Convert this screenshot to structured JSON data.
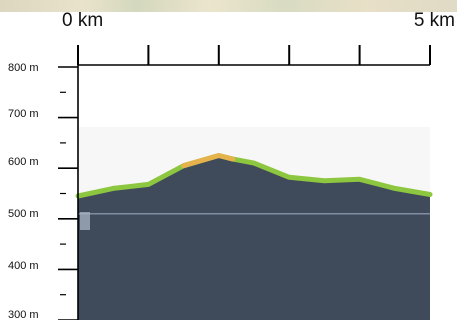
{
  "map_preview": {
    "icon": "map-strip"
  },
  "distance_axis": {
    "start_label": "0 km",
    "end_label": "5 km"
  },
  "elevation_axis": {
    "labels": [
      "800 m",
      "700 m",
      "600 m",
      "500 m",
      "400 m",
      "300 m"
    ]
  },
  "chart_data": {
    "type": "area",
    "title": "",
    "xlabel": "",
    "ylabel": "",
    "x_unit": "km",
    "y_unit": "m",
    "xlim": [
      0,
      5
    ],
    "ylim": [
      300,
      800
    ],
    "x_ticks": [
      0,
      1,
      2,
      3,
      4,
      5
    ],
    "y_ticks": [
      800,
      700,
      600,
      500,
      400,
      300
    ],
    "series": [
      {
        "x": [
          0,
          0.5,
          1,
          1.5,
          2,
          2.2,
          2.5,
          3,
          3.5,
          4,
          4.5,
          5
        ],
        "y": [
          545,
          560,
          568,
          605,
          625,
          618,
          610,
          582,
          575,
          578,
          560,
          548
        ]
      }
    ],
    "colors": {
      "terrain_fill": "#3f4a5a",
      "profile_line": "#8dc63f",
      "highlight_segment": "#e6b24c",
      "reference_line": "#7f8ea3"
    }
  }
}
